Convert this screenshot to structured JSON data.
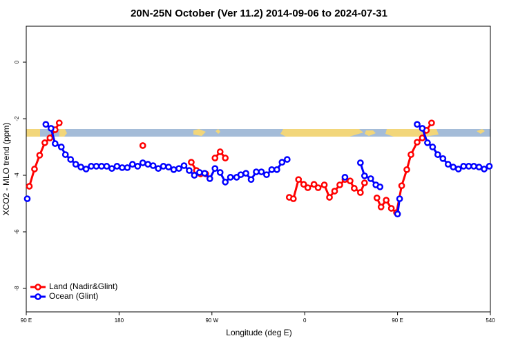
{
  "chart_data": {
    "type": "line",
    "title": "20N-25N October (Ver 11.2)   2014-09-06 to 2024-07-31",
    "xlabel": "Longitude (deg E)",
    "ylabel": "XCO2 - MLO trend (ppm)",
    "xlim": [
      90,
      540
    ],
    "ylim": [
      -8.83,
      1.27
    ],
    "xticks": [
      {
        "value": 90,
        "label": "90 E"
      },
      180,
      {
        "value": 270,
        "label": "90 W"
      },
      {
        "value": 360,
        "label": "0"
      },
      {
        "value": 450,
        "label": "90 E"
      },
      540
    ],
    "yticks": [
      0,
      -2,
      -4,
      -6,
      -8
    ],
    "legend": "lower left",
    "series": [
      {
        "name": "Land (Nadir&Glint)",
        "color": "#ff0000",
        "x": [
          93,
          98,
          103,
          108,
          113,
          118,
          122,
          null,
          203,
          null,
          250,
          255,
          259,
          264,
          null,
          273,
          278,
          283,
          null,
          345,
          349,
          354,
          359,
          363,
          369,
          373,
          379,
          384,
          389,
          394,
          399,
          404,
          408,
          414,
          418,
          null,
          430,
          434,
          439,
          444,
          449,
          454,
          459,
          463,
          469,
          474,
          478,
          483
        ],
        "values": [
          -4.39,
          -3.78,
          -3.29,
          -2.85,
          -2.68,
          -2.39,
          -2.15,
          null,
          -2.95,
          null,
          -3.54,
          -3.83,
          -3.95,
          -3.95,
          null,
          -3.39,
          -3.17,
          -3.39,
          null,
          -4.78,
          -4.83,
          -4.15,
          -4.32,
          -4.44,
          -4.32,
          -4.44,
          -4.34,
          -4.78,
          -4.56,
          -4.34,
          -4.15,
          -4.2,
          -4.46,
          -4.61,
          -4.27,
          null,
          -4.8,
          -5.12,
          -4.88,
          -5.17,
          -5.32,
          -4.37,
          -3.8,
          -3.27,
          -2.83,
          -2.68,
          -2.41,
          -2.15
        ]
      },
      {
        "name": "Ocean (Glint)",
        "color": "#0000ff",
        "x": [
          91,
          null,
          109,
          114,
          118,
          124,
          128,
          133,
          138,
          143,
          148,
          153,
          158,
          163,
          168,
          173,
          178,
          183,
          188,
          193,
          198,
          203,
          208,
          213,
          218,
          223,
          228,
          233,
          238,
          243,
          248,
          253,
          258,
          263,
          268,
          273,
          278,
          283,
          288,
          294,
          298,
          303,
          308,
          313,
          318,
          323,
          328,
          333,
          338,
          343,
          null,
          399,
          null,
          414,
          418,
          424,
          429,
          433,
          null,
          450,
          452,
          null,
          469,
          474,
          479,
          484,
          489,
          494,
          499,
          504,
          509,
          514,
          519,
          524,
          529,
          534,
          539
        ],
        "values": [
          -4.83,
          null,
          -2.2,
          -2.34,
          -2.88,
          -3.0,
          -3.27,
          -3.44,
          -3.61,
          -3.71,
          -3.78,
          -3.68,
          -3.68,
          -3.68,
          -3.68,
          -3.76,
          -3.68,
          -3.73,
          -3.73,
          -3.61,
          -3.68,
          -3.56,
          -3.61,
          -3.66,
          -3.76,
          -3.68,
          -3.71,
          -3.8,
          -3.76,
          -3.66,
          -3.83,
          -4.0,
          -3.9,
          -3.93,
          -4.12,
          -3.76,
          -3.9,
          -4.24,
          -4.07,
          -4.07,
          -3.98,
          -3.93,
          -4.15,
          -3.88,
          -3.88,
          -3.98,
          -3.8,
          -3.8,
          -3.54,
          -3.44,
          null,
          -4.07,
          null,
          -3.56,
          -4.02,
          -4.12,
          -4.34,
          -4.41,
          null,
          -5.37,
          -4.83,
          null,
          -2.2,
          -2.34,
          -2.85,
          -3.0,
          -3.27,
          -3.41,
          -3.61,
          -3.71,
          -3.78,
          -3.68,
          -3.68,
          -3.68,
          -3.71,
          -3.78,
          -3.68
        ]
      }
    ]
  }
}
